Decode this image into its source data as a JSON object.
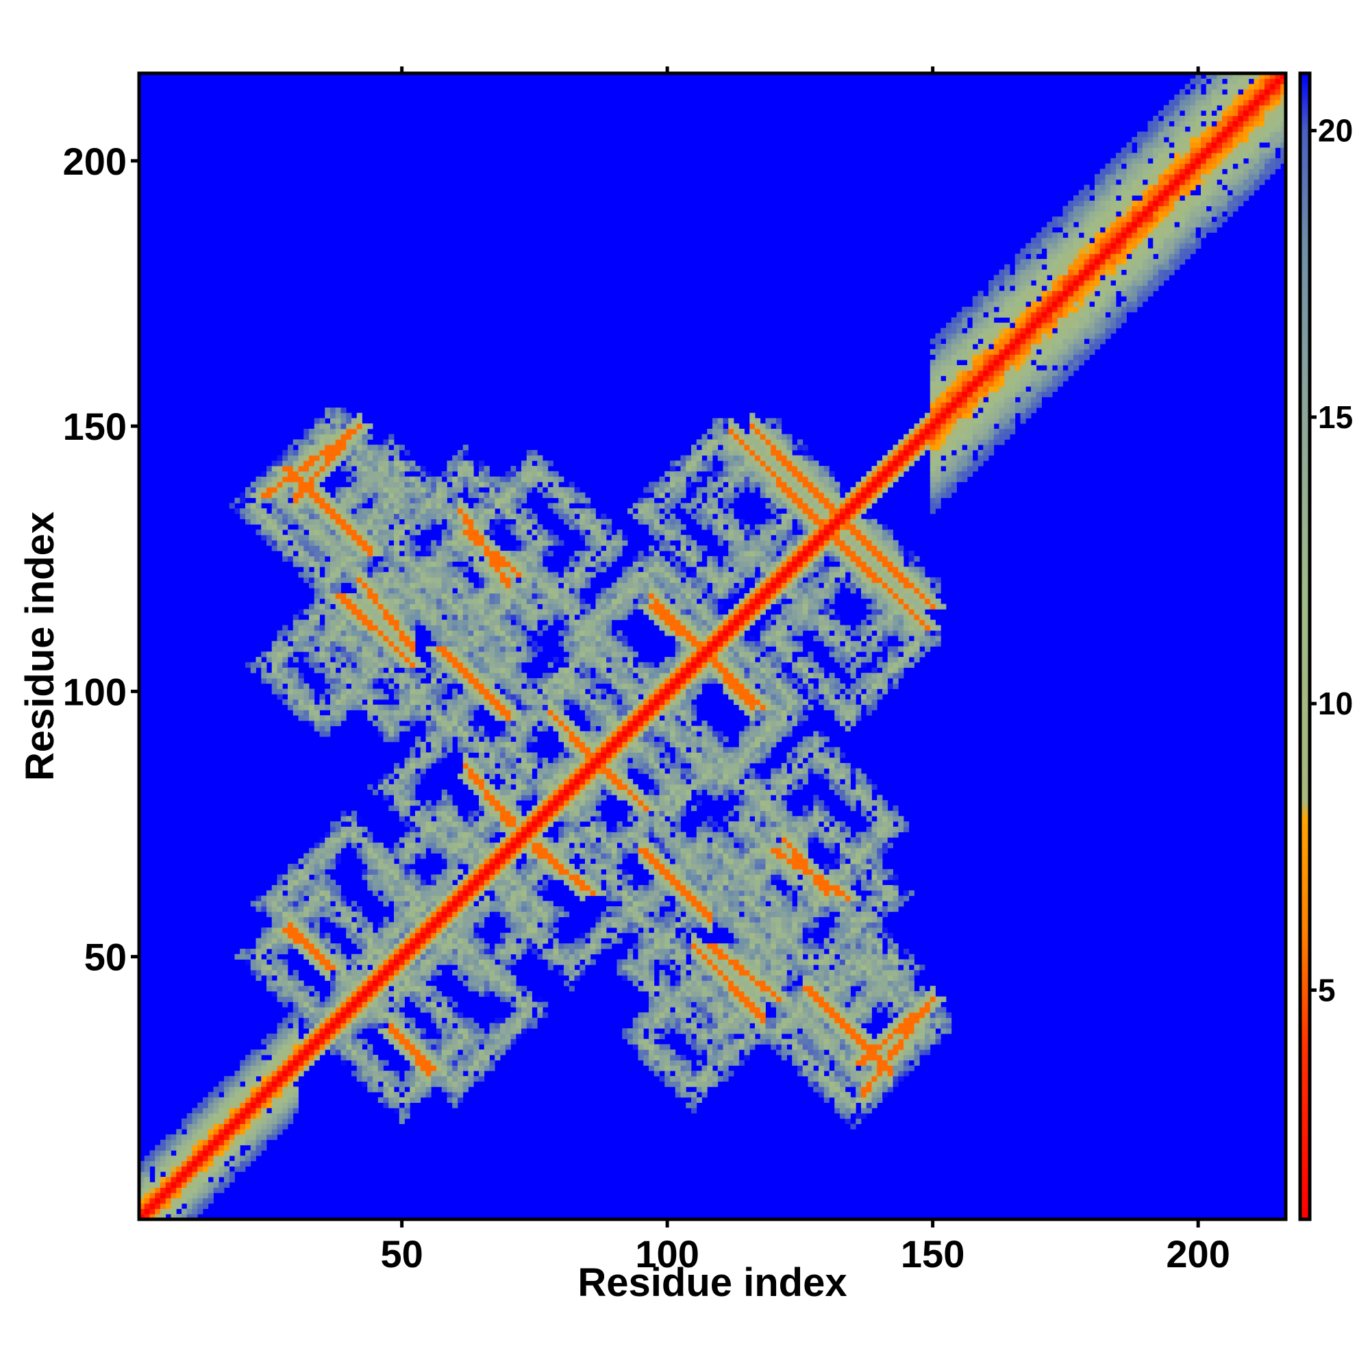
{
  "chart_data": {
    "type": "heatmap",
    "title": "",
    "xlabel": "Residue index",
    "ylabel": "Residue index",
    "xlim": [
      1,
      216
    ],
    "ylim": [
      1,
      216
    ],
    "x_ticks": [
      50,
      100,
      150,
      200
    ],
    "y_ticks": [
      50,
      100,
      150,
      200
    ],
    "colorbar": {
      "range": [
        1,
        21
      ],
      "ticks": [
        5,
        10,
        15,
        20
      ],
      "stops": [
        {
          "value": 1,
          "color": "#ff0000"
        },
        {
          "value": 4,
          "color": "#ff3300"
        },
        {
          "value": 6,
          "color": "#ff8000"
        },
        {
          "value": 8,
          "color": "#ffa500"
        },
        {
          "value": 8.3,
          "color": "#a8b87e"
        },
        {
          "value": 12,
          "color": "#9fba8a"
        },
        {
          "value": 15,
          "color": "#8ea79a"
        },
        {
          "value": 18,
          "color": "#6f8fa8"
        },
        {
          "value": 20,
          "color": "#4a5fc2"
        },
        {
          "value": 21,
          "color": "#0000ff"
        }
      ]
    },
    "background_value": 21,
    "diagonal": {
      "from": 1,
      "to": 216,
      "value": 1
    },
    "bands": [
      {
        "x0": 1,
        "y0": 1,
        "x1": 30,
        "y1": 30,
        "width": 10
      },
      {
        "x0": 150,
        "y0": 150,
        "x1": 216,
        "y1": 216,
        "width": 16
      }
    ],
    "antidiagonals": [
      {
        "x0": 24,
        "y0": 137,
        "x1": 42,
        "y1": 150
      },
      {
        "x0": 62,
        "y0": 130,
        "x1": 72,
        "y1": 122
      },
      {
        "x0": 120,
        "y0": 145,
        "x1": 150,
        "y1": 116
      },
      {
        "x0": 38,
        "y0": 118,
        "x1": 52,
        "y1": 105
      },
      {
        "x0": 97,
        "y0": 116,
        "x1": 118,
        "y1": 97
      },
      {
        "x0": 63,
        "y0": 84,
        "x1": 71,
        "y1": 75
      },
      {
        "x0": 75,
        "y0": 70,
        "x1": 86,
        "y1": 62
      },
      {
        "x0": 82,
        "y0": 91,
        "x1": 96,
        "y1": 78
      },
      {
        "x0": 120,
        "y0": 70,
        "x1": 134,
        "y1": 61
      },
      {
        "x0": 28,
        "y0": 55,
        "x1": 37,
        "y1": 48
      },
      {
        "x0": 48,
        "y0": 36,
        "x1": 56,
        "y1": 29
      },
      {
        "x0": 108,
        "y0": 52,
        "x1": 121,
        "y1": 42
      },
      {
        "x0": 136,
        "y0": 30,
        "x1": 150,
        "y1": 42
      },
      {
        "x0": 28,
        "y0": 142,
        "x1": 44,
        "y1": 126
      },
      {
        "x0": 57,
        "y0": 108,
        "x1": 70,
        "y1": 95
      },
      {
        "x0": 131,
        "y0": 129,
        "x1": 149,
        "y1": 112
      }
    ],
    "rings": [
      {
        "cx": 36,
        "cy": 135,
        "r": 14
      },
      {
        "cx": 62,
        "cy": 128,
        "r": 14
      },
      {
        "cx": 110,
        "cy": 134,
        "r": 14
      },
      {
        "cx": 135,
        "cy": 120,
        "r": 13
      },
      {
        "cx": 48,
        "cy": 108,
        "r": 14
      },
      {
        "cx": 75,
        "cy": 110,
        "r": 12
      },
      {
        "cx": 98,
        "cy": 112,
        "r": 12
      },
      {
        "cx": 110,
        "cy": 95,
        "r": 12
      },
      {
        "cx": 60,
        "cy": 82,
        "r": 12
      },
      {
        "cx": 90,
        "cy": 82,
        "r": 12
      },
      {
        "cx": 128,
        "cy": 75,
        "r": 14
      },
      {
        "cx": 40,
        "cy": 60,
        "r": 14
      },
      {
        "cx": 65,
        "cy": 58,
        "r": 12
      },
      {
        "cx": 108,
        "cy": 58,
        "r": 14
      },
      {
        "cx": 130,
        "cy": 48,
        "r": 14
      },
      {
        "cx": 50,
        "cy": 35,
        "r": 12
      },
      {
        "cx": 105,
        "cy": 35,
        "r": 10
      },
      {
        "cx": 138,
        "cy": 38,
        "r": 12
      }
    ]
  }
}
